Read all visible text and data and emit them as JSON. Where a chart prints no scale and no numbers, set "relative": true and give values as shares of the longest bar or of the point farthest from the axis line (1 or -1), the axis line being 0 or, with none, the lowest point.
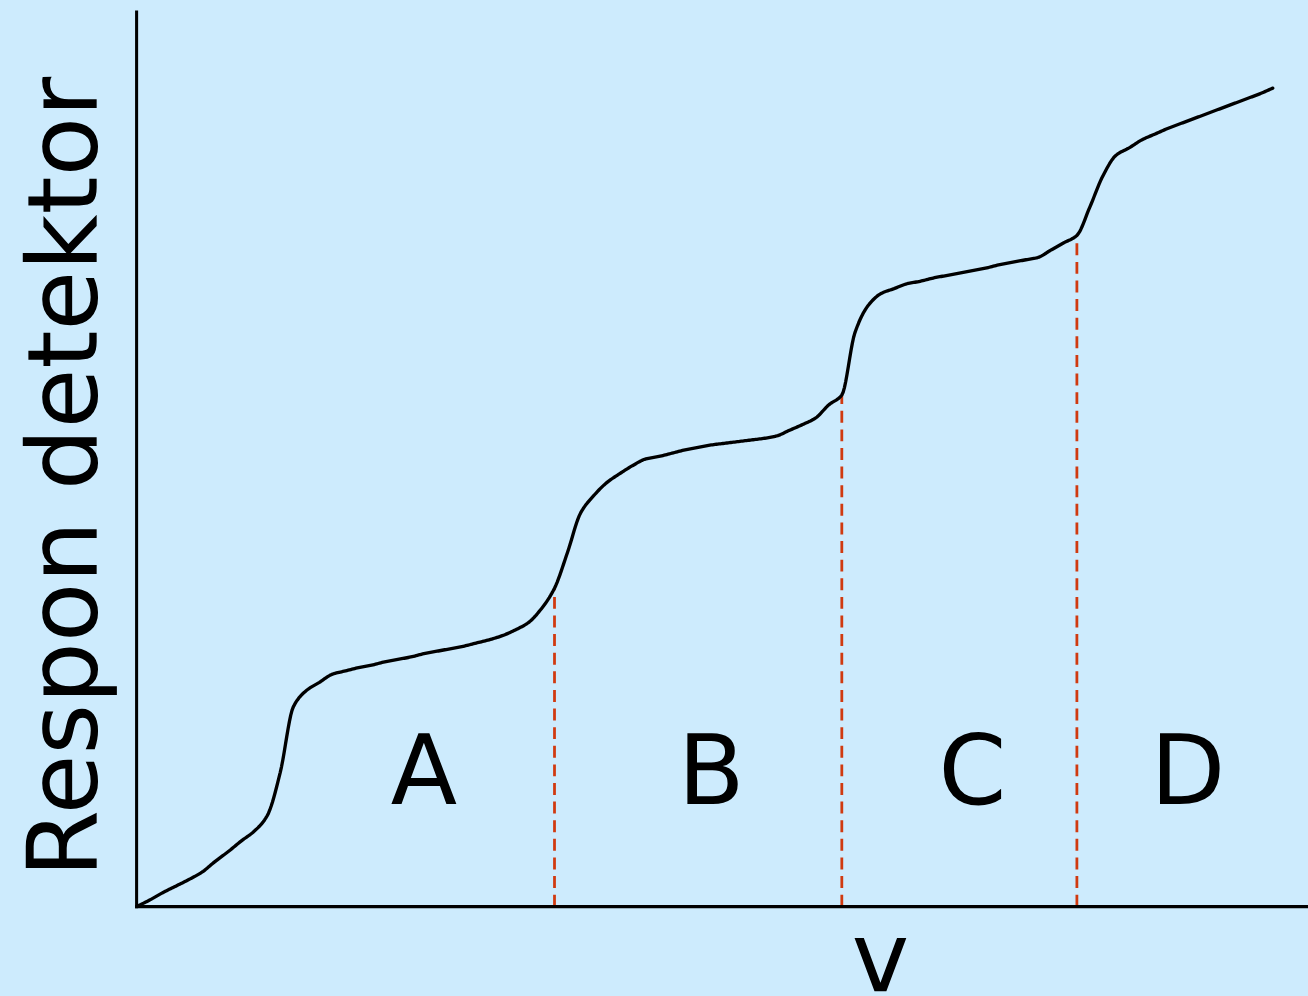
{
  "chart_data": {
    "type": "line",
    "relative": true,
    "xlabel": "v",
    "ylabel": "Respon detektor",
    "categories": [
      null,
      null,
      null,
      null,
      null,
      null,
      null,
      null,
      null,
      null,
      null,
      null,
      null,
      null,
      null,
      null,
      null,
      null,
      null,
      null,
      null,
      null,
      null,
      null,
      null,
      null,
      null,
      null,
      null,
      null,
      null,
      null,
      null,
      null,
      null,
      null,
      null,
      null,
      null,
      null,
      null,
      null,
      null,
      null,
      null,
      null,
      null,
      null,
      null,
      null,
      null,
      null,
      null,
      null,
      null,
      null,
      null,
      null,
      null,
      null,
      null,
      null,
      null,
      null,
      null,
      null,
      null,
      null,
      null,
      null,
      null,
      null,
      null,
      null,
      null,
      null,
      null,
      null,
      null,
      null,
      null,
      null,
      null,
      null,
      null,
      null,
      null,
      null
    ],
    "series": [
      {
        "color": "#000000",
        "values": [
          0,
          0.008,
          0.017,
          0.025,
          0.033,
          0.042,
          0.055,
          0.067,
          0.08,
          0.092,
          0.111,
          0.164,
          0.244,
          0.264,
          0.274,
          0.284,
          0.288,
          0.292,
          0.295,
          0.299,
          0.302,
          0.305,
          0.309,
          0.312,
          0.315,
          0.318,
          0.322,
          0.326,
          0.331,
          0.338,
          0.347,
          0.364,
          0.389,
          0.433,
          0.481,
          0.502,
          0.518,
          0.529,
          0.539,
          0.547,
          0.55,
          0.554,
          0.558,
          0.561,
          0.564,
          0.566,
          0.568,
          0.57,
          0.572,
          0.575,
          0.582,
          0.589,
          0.597,
          0.613,
          0.625,
          0.701,
          0.734,
          0.749,
          0.755,
          0.761,
          0.764,
          0.768,
          0.771,
          0.774,
          0.777,
          0.78,
          0.784,
          0.787,
          0.79,
          0.793,
          0.802,
          0.811,
          0.82,
          0.855,
          0.893,
          0.918,
          0.927,
          0.937,
          0.944,
          0.951,
          0.957,
          0.963,
          0.969,
          0.975,
          0.981,
          0.987,
          0.993,
          1.0
        ]
      }
    ],
    "annotations": [
      "A",
      "B",
      "C",
      "D"
    ]
  }
}
